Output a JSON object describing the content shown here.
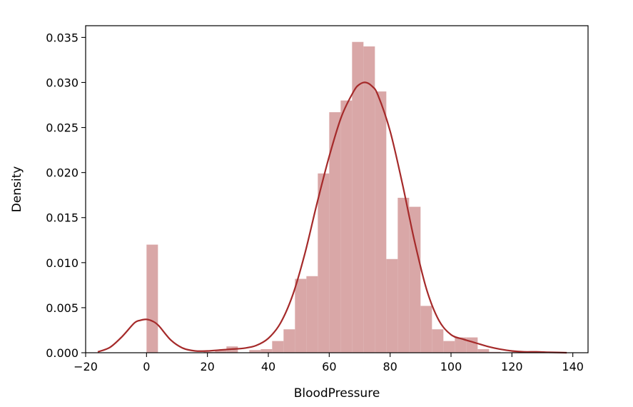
{
  "chart_data": {
    "type": "bar",
    "title": "",
    "xlabel": "BloodPressure",
    "ylabel": "Density",
    "xlim": [
      -20,
      145
    ],
    "ylim": [
      0,
      0.0363
    ],
    "xticks": [
      -20,
      0,
      20,
      40,
      60,
      80,
      100,
      120,
      140
    ],
    "yticks": [
      0.0,
      0.005,
      0.01,
      0.015,
      0.02,
      0.025,
      0.03,
      0.035
    ],
    "ytick_labels": [
      "0.000",
      "0.005",
      "0.010",
      "0.015",
      "0.020",
      "0.025",
      "0.030",
      "0.035"
    ],
    "xtick_labels": [
      "−20",
      "0",
      "20",
      "40",
      "60",
      "80",
      "100",
      "120",
      "140"
    ],
    "grid": false,
    "bar_color": "#d9a7a7",
    "line_color": "#a52a2a",
    "bins": [
      {
        "x0": 0.0,
        "x1": 3.75,
        "density": 0.012
      },
      {
        "x0": 3.75,
        "x1": 7.5,
        "density": 0.0
      },
      {
        "x0": 7.5,
        "x1": 11.25,
        "density": 0.0
      },
      {
        "x0": 11.25,
        "x1": 15.0,
        "density": 0.0
      },
      {
        "x0": 15.0,
        "x1": 18.75,
        "density": 0.0
      },
      {
        "x0": 18.75,
        "x1": 22.5,
        "density": 0.0001
      },
      {
        "x0": 22.5,
        "x1": 26.25,
        "density": 0.0003
      },
      {
        "x0": 26.25,
        "x1": 30.0,
        "density": 0.0007
      },
      {
        "x0": 30.0,
        "x1": 33.75,
        "density": 0.0
      },
      {
        "x0": 33.75,
        "x1": 37.5,
        "density": 0.0003
      },
      {
        "x0": 37.5,
        "x1": 41.25,
        "density": 0.0004
      },
      {
        "x0": 41.25,
        "x1": 45.0,
        "density": 0.0013
      },
      {
        "x0": 45.0,
        "x1": 48.75,
        "density": 0.0026
      },
      {
        "x0": 48.75,
        "x1": 52.5,
        "density": 0.0082
      },
      {
        "x0": 52.5,
        "x1": 56.25,
        "density": 0.0085
      },
      {
        "x0": 56.25,
        "x1": 60.0,
        "density": 0.0199
      },
      {
        "x0": 60.0,
        "x1": 63.75,
        "density": 0.0267
      },
      {
        "x0": 63.75,
        "x1": 67.5,
        "density": 0.028
      },
      {
        "x0": 67.5,
        "x1": 71.25,
        "density": 0.0345
      },
      {
        "x0": 71.25,
        "x1": 75.0,
        "density": 0.034
      },
      {
        "x0": 75.0,
        "x1": 78.75,
        "density": 0.029
      },
      {
        "x0": 78.75,
        "x1": 82.5,
        "density": 0.0104
      },
      {
        "x0": 82.5,
        "x1": 86.25,
        "density": 0.0172
      },
      {
        "x0": 86.25,
        "x1": 90.0,
        "density": 0.0162
      },
      {
        "x0": 90.0,
        "x1": 93.75,
        "density": 0.0052
      },
      {
        "x0": 93.75,
        "x1": 97.5,
        "density": 0.0026
      },
      {
        "x0": 97.5,
        "x1": 101.25,
        "density": 0.0013
      },
      {
        "x0": 101.25,
        "x1": 105.0,
        "density": 0.0017
      },
      {
        "x0": 105.0,
        "x1": 108.75,
        "density": 0.0017
      },
      {
        "x0": 108.75,
        "x1": 112.5,
        "density": 0.0004
      },
      {
        "x0": 112.5,
        "x1": 116.25,
        "density": 0.0001
      },
      {
        "x0": 116.25,
        "x1": 120.0,
        "density": 0.0
      },
      {
        "x0": 120.0,
        "x1": 123.75,
        "density": 0.0001
      }
    ],
    "kde": {
      "x": [
        -16,
        -12,
        -8,
        -4,
        -2,
        0,
        2,
        4,
        8,
        12,
        16,
        20,
        24,
        28,
        32,
        36,
        40,
        44,
        48,
        52,
        56,
        60,
        64,
        68,
        70,
        72,
        74,
        76,
        80,
        84,
        88,
        92,
        96,
        100,
        104,
        108,
        112,
        116,
        120,
        124,
        128,
        132,
        136,
        138
      ],
      "y": [
        0.0001,
        0.0006,
        0.0018,
        0.0033,
        0.0036,
        0.0037,
        0.0035,
        0.003,
        0.0014,
        0.0005,
        0.0002,
        0.0002,
        0.0003,
        0.0004,
        0.0005,
        0.0008,
        0.0016,
        0.0033,
        0.0064,
        0.011,
        0.0166,
        0.0218,
        0.0262,
        0.029,
        0.0298,
        0.03,
        0.0296,
        0.0286,
        0.0246,
        0.0188,
        0.0124,
        0.007,
        0.0036,
        0.002,
        0.0015,
        0.0011,
        0.0007,
        0.0004,
        0.0002,
        0.0001,
        0.0001,
        5e-05,
        2e-05,
        0.0
      ]
    }
  }
}
